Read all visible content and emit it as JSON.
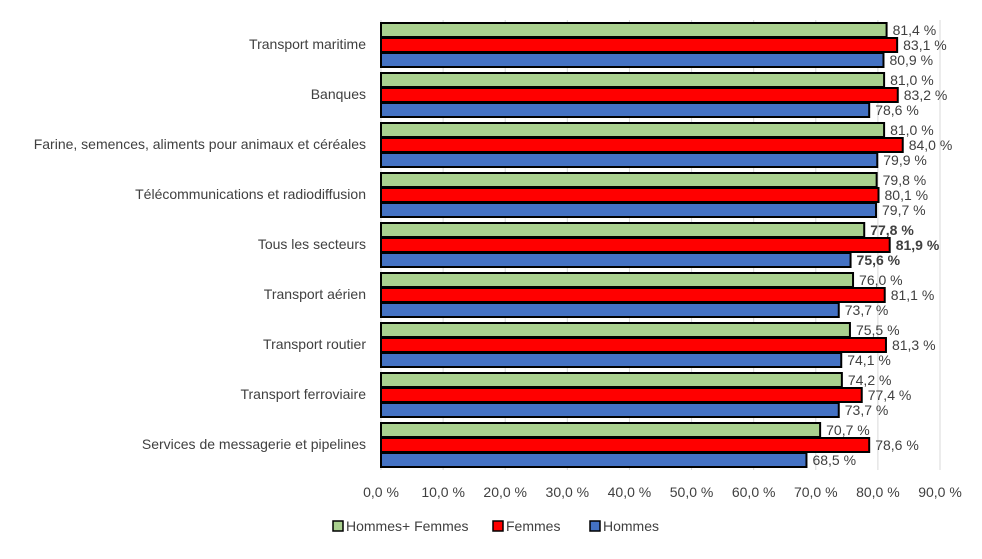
{
  "chart_data": {
    "type": "bar",
    "orientation": "horizontal",
    "categories": [
      "Transport maritime",
      "Banques",
      "Farine, semences, aliments pour animaux et céréales",
      "Télécommunications et radiodiffusion",
      "Tous les secteurs",
      "Transport aérien",
      "Transport routier",
      "Transport ferroviaire",
      "Services de messagerie et pipelines"
    ],
    "highlight_category": "Tous les secteurs",
    "series": [
      {
        "name": "Hommes+ Femmes",
        "color": "#a9d08e",
        "values": [
          81.4,
          81.0,
          81.0,
          79.8,
          77.8,
          76.0,
          75.5,
          74.2,
          70.7
        ],
        "labels": [
          "81,4 %",
          "81,0 %",
          "81,0 %",
          "79,8 %",
          "77,8 %",
          "76,0 %",
          "75,5 %",
          "74,2 %",
          "70,7 %"
        ]
      },
      {
        "name": "Femmes",
        "color": "#ff0000",
        "values": [
          83.1,
          83.2,
          84.0,
          80.1,
          81.9,
          81.1,
          81.3,
          77.4,
          78.6
        ],
        "labels": [
          "83,1 %",
          "83,2 %",
          "84,0 %",
          "80,1 %",
          "81,9 %",
          "81,1 %",
          "81,3 %",
          "77,4 %",
          "78,6 %"
        ]
      },
      {
        "name": "Hommes",
        "color": "#4472c4",
        "values": [
          80.9,
          78.6,
          79.9,
          79.7,
          75.6,
          73.7,
          74.1,
          73.7,
          68.5
        ],
        "labels": [
          "80,9 %",
          "78,6 %",
          "79,9 %",
          "79,7 %",
          "75,6 %",
          "73,7 %",
          "74,1 %",
          "73,7 %",
          "68,5 %"
        ]
      }
    ],
    "xlim": [
      0,
      90
    ],
    "x_ticks": [
      0,
      10,
      20,
      30,
      40,
      50,
      60,
      70,
      80,
      90
    ],
    "x_tick_labels": [
      "0,0 %",
      "10,0 %",
      "20,0 %",
      "30,0 %",
      "40,0 %",
      "50,0 %",
      "60,0 %",
      "70,0 %",
      "80,0 %",
      "90,0 %"
    ],
    "grid": true,
    "legend_position": "bottom"
  }
}
